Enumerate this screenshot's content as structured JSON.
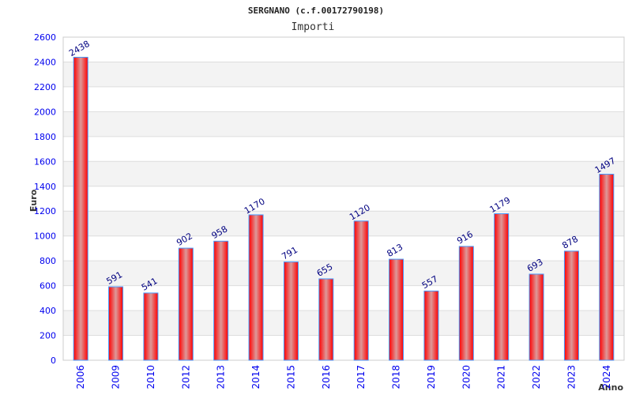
{
  "chart_data": {
    "type": "bar",
    "title": "SERGNANO (c.f.00172790198)",
    "subtitle": "Importi",
    "xlabel": "Anno",
    "ylabel": "Euro",
    "categories": [
      "2006",
      "2009",
      "2010",
      "2012",
      "2013",
      "2014",
      "2015",
      "2016",
      "2017",
      "2018",
      "2019",
      "2020",
      "2021",
      "2022",
      "2023",
      "2024"
    ],
    "values": [
      2438,
      591,
      541,
      902,
      958,
      1170,
      791,
      655,
      1120,
      813,
      557,
      916,
      1179,
      693,
      878,
      1497
    ],
    "ylim": [
      0,
      2600
    ],
    "yticks": [
      0,
      200,
      400,
      600,
      800,
      1000,
      1200,
      1400,
      1600,
      1800,
      2000,
      2200,
      2400,
      2600
    ],
    "grid": true,
    "colors": {
      "bar": "#ff0000",
      "bar_border": "#4499ff",
      "tick": "#0000ee",
      "label": "#000080",
      "band": "#f3f3f3"
    }
  }
}
